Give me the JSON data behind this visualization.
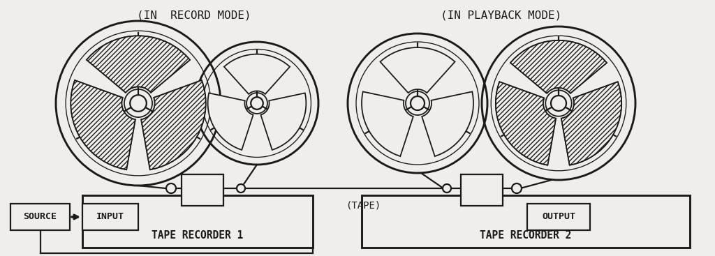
{
  "bg_color": "#f0eeea",
  "fg_color": "#1a1a1a",
  "labels": {
    "record_mode": "(IN  RECORD MODE)",
    "playback_mode": "(IN PLAYBACK MODE)",
    "tape": "(TAPE)",
    "source": "SOURCE",
    "input": "INPUT",
    "tr1": "TAPE RECORDER 1",
    "output": "OUTPUT",
    "tr2": "TAPE RECORDER 2"
  },
  "lw": 1.6,
  "fig_w": 10.24,
  "fig_h": 3.67
}
